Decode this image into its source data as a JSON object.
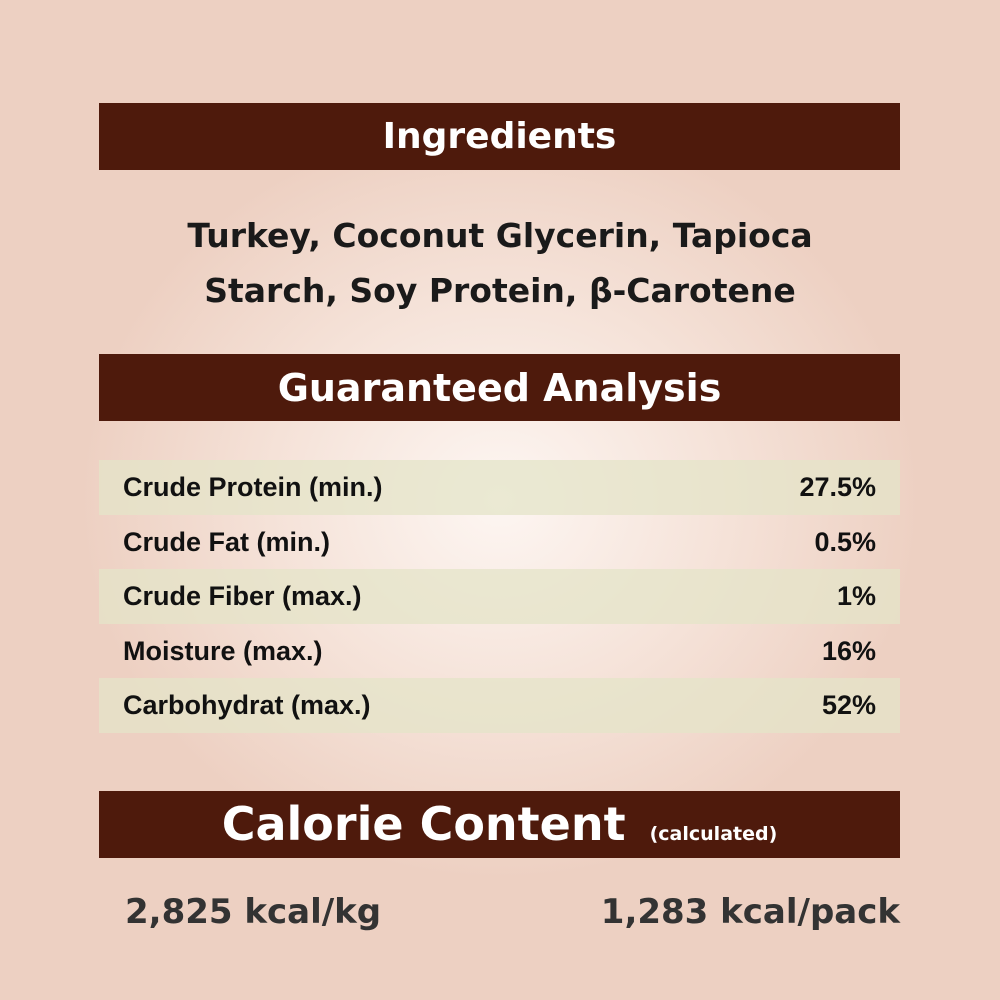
{
  "ingredients": {
    "title": "Ingredients",
    "line1": "Turkey, Coconut Glycerin, Tapioca",
    "line2": "Starch, Soy Protein, β-Carotene"
  },
  "analysis": {
    "title": "Guaranteed Analysis",
    "rows": [
      {
        "label": "Crude Protein (min.)",
        "value": "27.5%"
      },
      {
        "label": "Crude Fat (min.)",
        "value": "0.5%"
      },
      {
        "label": "Crude Fiber (max.)",
        "value": "1%"
      },
      {
        "label": "Moisture (max.)",
        "value": "16%"
      },
      {
        "label": "Carbohydrat (max.)",
        "value": "52%"
      }
    ]
  },
  "calorie": {
    "title": "Calorie Content",
    "note": "(calculated)",
    "per_kg": "2,825 kcal/kg",
    "per_pack": "1,283 kcal/pack"
  },
  "colors": {
    "banner": "#4e1a0c",
    "background": "#efd5c8"
  }
}
